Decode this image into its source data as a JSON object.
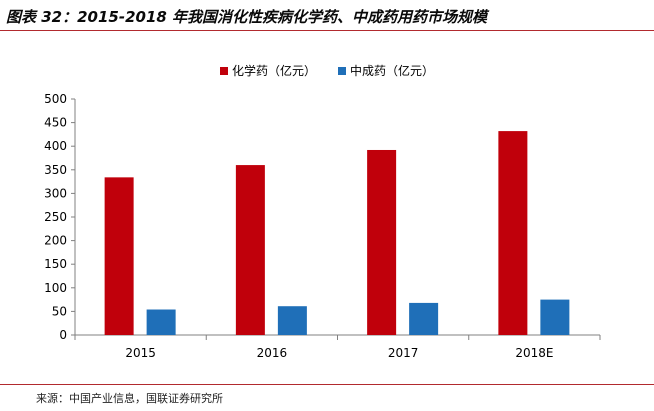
{
  "title": "图表 32：2015-2018 年我国消化性疾病化学药、中成药用药市场规模",
  "source": "来源：中国产业信息，国联证券研究所",
  "chart_data": {
    "type": "bar",
    "categories": [
      "2015",
      "2016",
      "2017",
      "2018E"
    ],
    "series": [
      {
        "name": "化学药（亿元）",
        "values": [
          334,
          360,
          392,
          432
        ],
        "color": "#c0000b"
      },
      {
        "name": "中成药（亿元）",
        "values": [
          54,
          61,
          68,
          75
        ],
        "color": "#1f6fb8"
      }
    ],
    "ylim": [
      0,
      500
    ],
    "yticks": [
      0,
      50,
      100,
      150,
      200,
      250,
      300,
      350,
      400,
      450,
      500
    ],
    "legend_position": "top-center",
    "grid": false
  }
}
